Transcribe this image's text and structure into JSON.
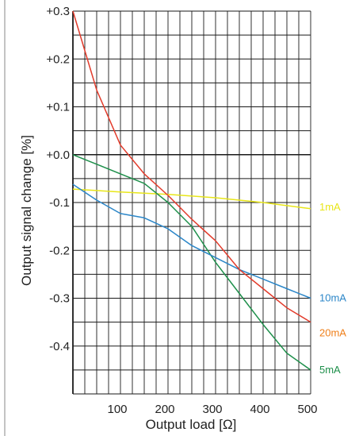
{
  "chart_data": {
    "type": "line",
    "title": "",
    "xlabel": "Output load [Ω]",
    "ylabel": "Output signal change [%]",
    "xlim": [
      0,
      500
    ],
    "ylim": [
      -0.5,
      0.3
    ],
    "x_ticks": [
      {
        "value": 100,
        "label": "100"
      },
      {
        "value": 200,
        "label": "200"
      },
      {
        "value": 300,
        "label": "300"
      },
      {
        "value": 400,
        "label": "400"
      },
      {
        "value": 500,
        "label": "500"
      }
    ],
    "y_ticks": [
      {
        "value": 0.3,
        "label": "+0.3"
      },
      {
        "value": 0.2,
        "label": "+0.2"
      },
      {
        "value": 0.1,
        "label": "+0.1"
      },
      {
        "value": 0.0,
        "label": "+0.0"
      },
      {
        "value": -0.1,
        "label": "-0.1"
      },
      {
        "value": -0.2,
        "label": "-0.2"
      },
      {
        "value": -0.3,
        "label": "-0.3"
      },
      {
        "value": -0.4,
        "label": "-0.4"
      }
    ],
    "grid": true,
    "series": [
      {
        "name": "1mA",
        "color": "#e8e619",
        "x": [
          0,
          100,
          200,
          300,
          400,
          500
        ],
        "y": [
          -0.072,
          -0.078,
          -0.083,
          -0.09,
          -0.1,
          -0.113
        ]
      },
      {
        "name": "5mA",
        "color": "#1d8f4a",
        "x": [
          0,
          50,
          100,
          150,
          200,
          250,
          300,
          350,
          400,
          450,
          500
        ],
        "y": [
          0.0,
          -0.02,
          -0.04,
          -0.06,
          -0.1,
          -0.15,
          -0.225,
          -0.29,
          -0.355,
          -0.415,
          -0.45
        ]
      },
      {
        "name": "10mA",
        "color": "#2b86c8",
        "x": [
          0,
          50,
          100,
          150,
          200,
          250,
          300,
          350,
          400,
          450,
          500
        ],
        "y": [
          -0.062,
          -0.095,
          -0.123,
          -0.132,
          -0.155,
          -0.19,
          -0.215,
          -0.24,
          -0.26,
          -0.28,
          -0.3
        ]
      },
      {
        "name": "20mA",
        "color": "#e23b2b",
        "label_color": "#ef7f1a",
        "x": [
          0,
          50,
          100,
          150,
          200,
          250,
          300,
          350,
          400,
          450,
          500
        ],
        "y": [
          0.3,
          0.135,
          0.02,
          -0.04,
          -0.085,
          -0.135,
          -0.18,
          -0.24,
          -0.28,
          -0.32,
          -0.35
        ]
      }
    ]
  }
}
